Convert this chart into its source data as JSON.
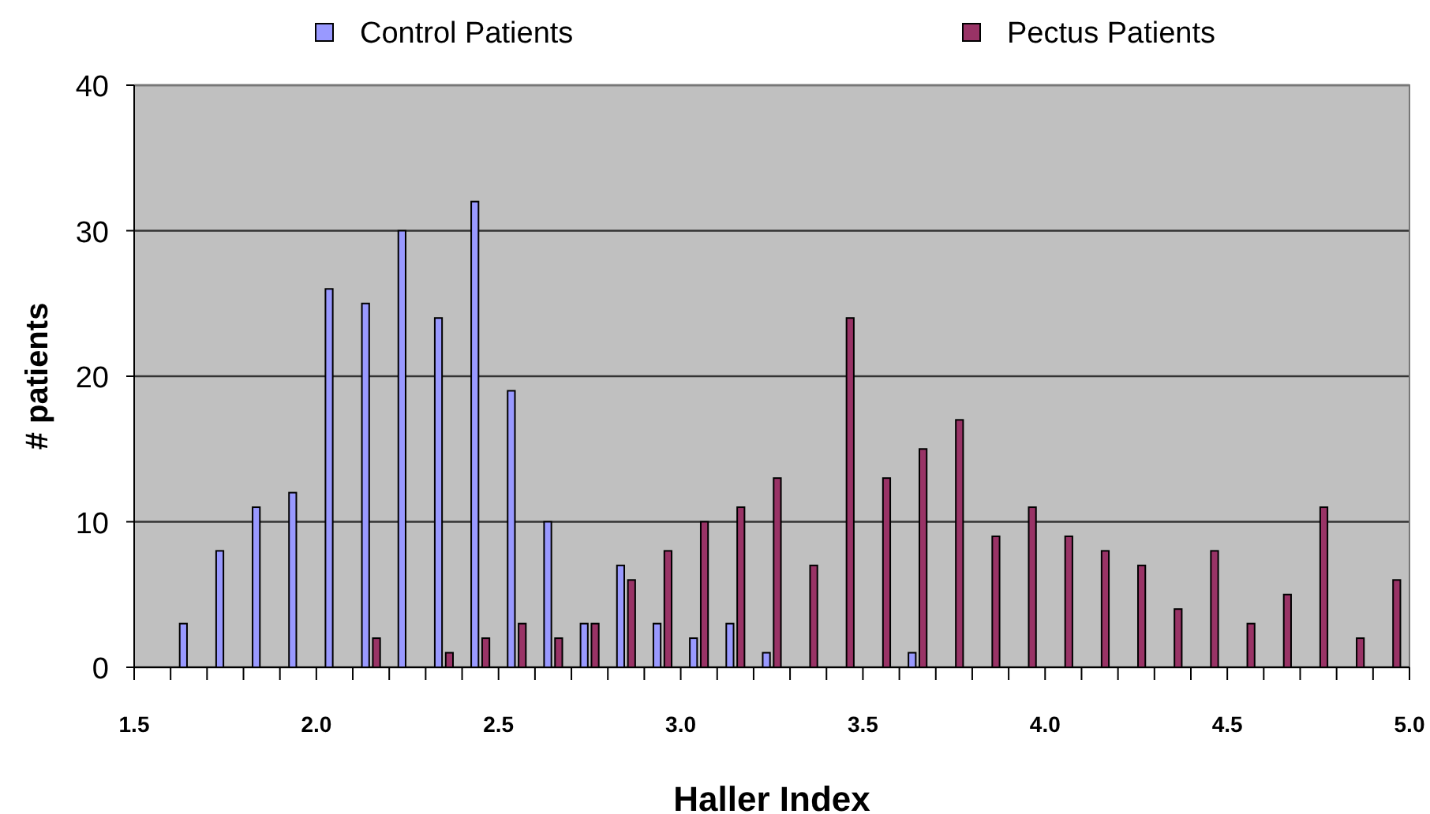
{
  "chart_data": {
    "type": "bar",
    "xlabel": "Haller Index",
    "ylabel": "# patients",
    "x": [
      1.55,
      1.65,
      1.75,
      1.85,
      1.95,
      2.05,
      2.15,
      2.25,
      2.35,
      2.45,
      2.55,
      2.65,
      2.75,
      2.85,
      2.95,
      3.05,
      3.15,
      3.25,
      3.35,
      3.45,
      3.55,
      3.65,
      3.75,
      3.85,
      3.95,
      4.05,
      4.15,
      4.25,
      4.35,
      4.45,
      4.55,
      4.65,
      4.75,
      4.85,
      4.95
    ],
    "series": [
      {
        "name": "Control Patients",
        "color": "#9999ff",
        "values": [
          0,
          3,
          8,
          11,
          12,
          26,
          25,
          30,
          24,
          32,
          19,
          10,
          3,
          7,
          3,
          2,
          3,
          1,
          0,
          0,
          0,
          1,
          0,
          0,
          0,
          0,
          0,
          0,
          0,
          0,
          0,
          0,
          0,
          0,
          0
        ]
      },
      {
        "name": "Pectus Patients",
        "color": "#993366",
        "values": [
          0,
          0,
          0,
          0,
          0,
          0,
          2,
          0,
          1,
          2,
          3,
          2,
          3,
          6,
          8,
          10,
          11,
          13,
          7,
          24,
          13,
          15,
          17,
          9,
          11,
          9,
          8,
          7,
          4,
          8,
          3,
          5,
          11,
          2,
          6
        ]
      }
    ],
    "xlim": [
      1.5,
      5.0
    ],
    "xticks": [
      {
        "value": 1.5,
        "label": "1.5"
      },
      {
        "value": 1.6,
        "label": null
      },
      {
        "value": 1.7,
        "label": null
      },
      {
        "value": 1.8,
        "label": null
      },
      {
        "value": 1.9,
        "label": null
      },
      {
        "value": 2.0,
        "label": "2.0"
      },
      {
        "value": 2.1,
        "label": null
      },
      {
        "value": 2.2,
        "label": null
      },
      {
        "value": 2.3,
        "label": null
      },
      {
        "value": 2.4,
        "label": null
      },
      {
        "value": 2.5,
        "label": "2.5"
      },
      {
        "value": 2.6,
        "label": null
      },
      {
        "value": 2.7,
        "label": null
      },
      {
        "value": 2.8,
        "label": null
      },
      {
        "value": 2.9,
        "label": null
      },
      {
        "value": 3.0,
        "label": "3.0"
      },
      {
        "value": 3.1,
        "label": null
      },
      {
        "value": 3.2,
        "label": null
      },
      {
        "value": 3.3,
        "label": null
      },
      {
        "value": 3.4,
        "label": null
      },
      {
        "value": 3.5,
        "label": "3.5"
      },
      {
        "value": 3.6,
        "label": null
      },
      {
        "value": 3.7,
        "label": null
      },
      {
        "value": 3.8,
        "label": null
      },
      {
        "value": 3.9,
        "label": null
      },
      {
        "value": 4.0,
        "label": "4.0"
      },
      {
        "value": 4.1,
        "label": null
      },
      {
        "value": 4.2,
        "label": null
      },
      {
        "value": 4.3,
        "label": null
      },
      {
        "value": 4.4,
        "label": null
      },
      {
        "value": 4.5,
        "label": "4.5"
      },
      {
        "value": 4.6,
        "label": null
      },
      {
        "value": 4.7,
        "label": null
      },
      {
        "value": 4.8,
        "label": null
      },
      {
        "value": 4.9,
        "label": null
      },
      {
        "value": 5.0,
        "label": "5.0"
      }
    ],
    "ylim": [
      0,
      40
    ],
    "yticks": [
      0,
      10,
      20,
      30,
      40
    ],
    "grid": "y",
    "legend": "top"
  }
}
